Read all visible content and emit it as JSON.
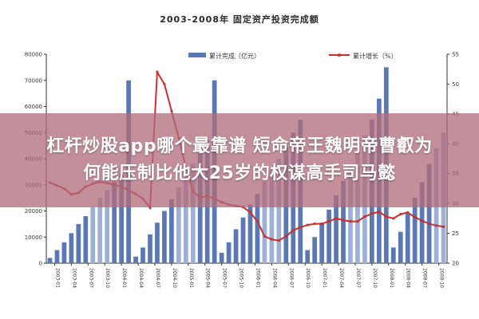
{
  "banner": {
    "line1": "杠杆炒股app哪个最靠谱 短命帝王魏明帝曹叡为",
    "line2": "何能压制比他大25岁的权谋高手司马懿"
  },
  "chart_data": {
    "type": "bar",
    "title": "2003-2008年 固定资产投资完成额",
    "legend_placement": "top",
    "grid": false,
    "colors": {
      "bar": "#5a78b4",
      "bar_light": "#9cb0d8",
      "line": "#cc2f2f"
    },
    "x_labels": [
      "2003-01",
      "2003-04",
      "2003-07",
      "2003-10",
      "2004-01",
      "2004-04",
      "2004-07",
      "2004-10",
      "2005-01",
      "2005-04",
      "2005-07",
      "2005-10",
      "2006-01",
      "2006-04",
      "2006-07",
      "2006-10",
      "2007-01",
      "2007-04",
      "2007-07",
      "2007-10",
      "2008-01",
      "2008-04",
      "2008-07",
      "2008-10"
    ],
    "y_left": {
      "ticks": [
        "0",
        "10000",
        "20000",
        "30000",
        "40000",
        "50000",
        "60000",
        "70000",
        "80000"
      ],
      "min": 0,
      "max": 80000
    },
    "y_right": {
      "ticks": [
        "20",
        "25",
        "30",
        "35",
        "40",
        "45",
        "50",
        "55"
      ],
      "min": 20,
      "max": 55
    },
    "series": [
      {
        "name": "累计完成（亿元）",
        "axis": "left",
        "values": [
          2000,
          5000,
          8000,
          11500,
          15000,
          18000,
          21500,
          25000,
          28000,
          31000,
          34000,
          70000,
          2500,
          6000,
          11000,
          15500,
          20000,
          24500,
          29000,
          33500,
          38000,
          42500,
          47000,
          70000,
          4000,
          8000,
          13000,
          17500,
          22500,
          26500,
          31000,
          35500,
          40000,
          44500,
          50000,
          55000,
          5000,
          10000,
          15500,
          20500,
          26000,
          31500,
          37000,
          43000,
          49000,
          55000,
          63000,
          75000,
          6000,
          12000,
          19000,
          25000,
          31000,
          38000,
          44000,
          50000
        ]
      },
      {
        "name": "累计增长（%）",
        "axis": "right",
        "values": [
          33.5,
          33,
          32.5,
          31.5,
          31.8,
          32.8,
          33.3,
          33.6,
          33.4,
          33.1,
          32.8,
          32.2,
          31.6,
          30.8,
          29.3,
          52,
          50,
          45.5,
          41,
          36,
          32,
          31,
          31.2,
          30.8,
          30.2,
          29.8,
          29.6,
          29.4,
          28.5,
          27,
          24.5,
          24,
          23.8,
          24.5,
          25.5,
          26,
          26.4,
          26.6,
          26.6,
          27,
          27.5,
          27.2,
          27,
          27,
          27.8,
          28.3,
          28.6,
          27.8,
          27.5,
          28.2,
          28.5,
          27.7,
          27.1,
          26.6,
          26.3,
          26.1
        ]
      }
    ]
  }
}
